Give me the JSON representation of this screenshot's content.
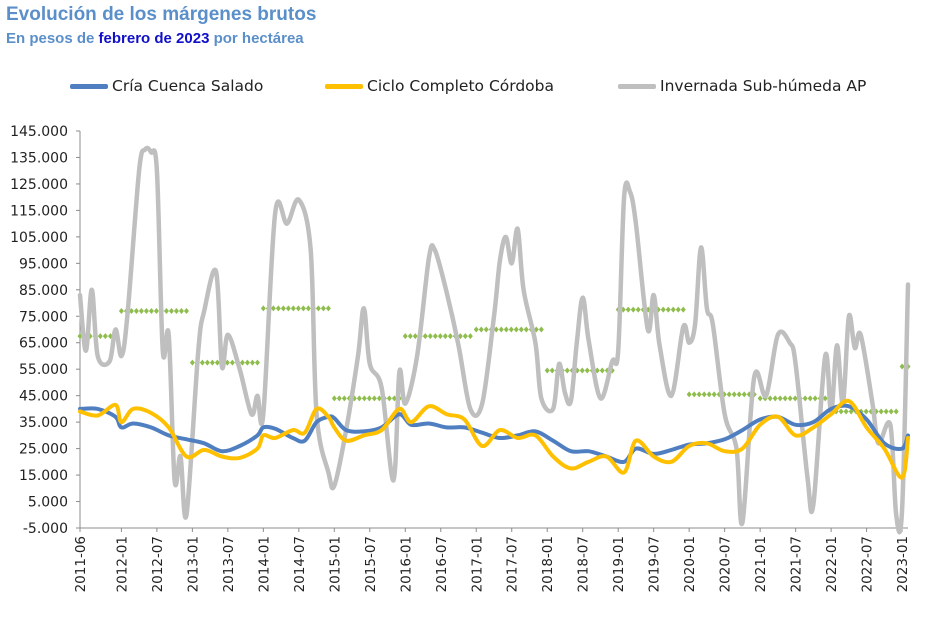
{
  "header": {
    "title": "Evolución de los márgenes brutos",
    "subtitle_prefix": "En pesos de ",
    "subtitle_highlight": "febrero de 2023",
    "subtitle_suffix": " por hectárea"
  },
  "colors": {
    "title": "#5b8fc9",
    "highlight": "#1010c8",
    "cria": "#4f7fc0",
    "ciclo": "#ffc000",
    "invernada": "#bfbfbf",
    "promedio": "#8fbd4d"
  },
  "chart_data": {
    "type": "line",
    "title": "Evolución de los márgenes brutos",
    "subtitle": "En pesos de febrero de 2023 por hectárea",
    "xlabel": "",
    "ylabel": "",
    "ylim": [
      -5000,
      145000
    ],
    "y_ticks": [
      "145.000",
      "135.000",
      "125.000",
      "115.000",
      "105.000",
      "95.000",
      "85.000",
      "75.000",
      "65.000",
      "55.000",
      "45.000",
      "35.000",
      "25.000",
      "15.000",
      "5.000",
      "-5.000"
    ],
    "x_ticks": [
      "2011-06",
      "2012-01",
      "2012-07",
      "2013-01",
      "2013-07",
      "2014-01",
      "2014-07",
      "2015-01",
      "2015-07",
      "2016-01",
      "2016-07",
      "2017-01",
      "2017-07",
      "2018-01",
      "2018-07",
      "2019-01",
      "2019-07",
      "2020-01",
      "2020-07",
      "2021-01",
      "2021-07",
      "2022-01",
      "2022-07",
      "2023-01"
    ],
    "legend_position": "top",
    "grid": false,
    "series": [
      {
        "name": "Cría Cuenca Salado",
        "color": "#4f7fc0",
        "points": [
          [
            "2011-06",
            40000
          ],
          [
            "2011-09",
            40000
          ],
          [
            "2011-12",
            37000
          ],
          [
            "2012-01",
            33000
          ],
          [
            "2012-03",
            34500
          ],
          [
            "2012-06",
            33000
          ],
          [
            "2012-09",
            30000
          ],
          [
            "2012-12",
            28500
          ],
          [
            "2013-03",
            27000
          ],
          [
            "2013-06",
            24000
          ],
          [
            "2013-09",
            26000
          ],
          [
            "2013-12",
            30000
          ],
          [
            "2014-01",
            33000
          ],
          [
            "2014-03",
            32500
          ],
          [
            "2014-06",
            29000
          ],
          [
            "2014-08",
            28000
          ],
          [
            "2014-10",
            35000
          ],
          [
            "2014-12",
            37000
          ],
          [
            "2015-01",
            36500
          ],
          [
            "2015-03",
            32000
          ],
          [
            "2015-06",
            31500
          ],
          [
            "2015-09",
            33000
          ],
          [
            "2015-12",
            38000
          ],
          [
            "2016-02",
            34000
          ],
          [
            "2016-05",
            34500
          ],
          [
            "2016-08",
            33000
          ],
          [
            "2016-11",
            33000
          ],
          [
            "2017-02",
            31000
          ],
          [
            "2017-05",
            29000
          ],
          [
            "2017-08",
            30000
          ],
          [
            "2017-11",
            31500
          ],
          [
            "2018-02",
            28000
          ],
          [
            "2018-05",
            24000
          ],
          [
            "2018-08",
            24000
          ],
          [
            "2018-11",
            22000
          ],
          [
            "2019-02",
            20000
          ],
          [
            "2019-04",
            25000
          ],
          [
            "2019-07",
            23000
          ],
          [
            "2019-10",
            24500
          ],
          [
            "2020-01",
            26500
          ],
          [
            "2020-04",
            27000
          ],
          [
            "2020-07",
            28500
          ],
          [
            "2020-10",
            32000
          ],
          [
            "2021-01",
            36000
          ],
          [
            "2021-04",
            37000
          ],
          [
            "2021-07",
            34000
          ],
          [
            "2021-10",
            35000
          ],
          [
            "2022-01",
            40000
          ],
          [
            "2022-04",
            41000
          ],
          [
            "2022-07",
            36000
          ],
          [
            "2022-10",
            27000
          ],
          [
            "2023-01",
            25000
          ],
          [
            "2023-02",
            30000
          ]
        ]
      },
      {
        "name": "Ciclo Completo Córdoba",
        "color": "#ffc000",
        "points": [
          [
            "2011-06",
            39000
          ],
          [
            "2011-09",
            37500
          ],
          [
            "2011-12",
            41500
          ],
          [
            "2012-01",
            35000
          ],
          [
            "2012-03",
            40000
          ],
          [
            "2012-06",
            38500
          ],
          [
            "2012-09",
            33000
          ],
          [
            "2012-12",
            22000
          ],
          [
            "2013-03",
            24500
          ],
          [
            "2013-06",
            22000
          ],
          [
            "2013-09",
            21500
          ],
          [
            "2013-12",
            25000
          ],
          [
            "2014-01",
            30000
          ],
          [
            "2014-03",
            29000
          ],
          [
            "2014-06",
            32000
          ],
          [
            "2014-08",
            31000
          ],
          [
            "2014-10",
            40000
          ],
          [
            "2014-12",
            37000
          ],
          [
            "2015-01",
            33000
          ],
          [
            "2015-03",
            28000
          ],
          [
            "2015-06",
            30000
          ],
          [
            "2015-09",
            32000
          ],
          [
            "2015-12",
            40000
          ],
          [
            "2016-02",
            35000
          ],
          [
            "2016-05",
            41000
          ],
          [
            "2016-08",
            38000
          ],
          [
            "2016-11",
            36000
          ],
          [
            "2017-02",
            26000
          ],
          [
            "2017-05",
            32000
          ],
          [
            "2017-08",
            29000
          ],
          [
            "2017-11",
            30000
          ],
          [
            "2018-02",
            22000
          ],
          [
            "2018-05",
            17500
          ],
          [
            "2018-08",
            20000
          ],
          [
            "2018-11",
            22000
          ],
          [
            "2019-02",
            16000
          ],
          [
            "2019-04",
            28000
          ],
          [
            "2019-07",
            22000
          ],
          [
            "2019-10",
            20000
          ],
          [
            "2020-01",
            26000
          ],
          [
            "2020-04",
            27000
          ],
          [
            "2020-07",
            24000
          ],
          [
            "2020-10",
            25000
          ],
          [
            "2021-01",
            34000
          ],
          [
            "2021-04",
            37000
          ],
          [
            "2021-07",
            30000
          ],
          [
            "2021-10",
            33000
          ],
          [
            "2022-01",
            38000
          ],
          [
            "2022-04",
            43000
          ],
          [
            "2022-07",
            33000
          ],
          [
            "2022-10",
            25000
          ],
          [
            "2023-01",
            14000
          ],
          [
            "2023-02",
            29000
          ]
        ]
      },
      {
        "name": "Invernada Sub-húmeda AP",
        "color": "#bfbfbf",
        "points": [
          [
            "2011-06",
            83000
          ],
          [
            "2011-07",
            62000
          ],
          [
            "2011-08",
            85000
          ],
          [
            "2011-09",
            60000
          ],
          [
            "2011-11",
            58000
          ],
          [
            "2011-12",
            70000
          ],
          [
            "2012-01",
            60000
          ],
          [
            "2012-02",
            75000
          ],
          [
            "2012-04",
            130000
          ],
          [
            "2012-05",
            138000
          ],
          [
            "2012-06",
            137000
          ],
          [
            "2012-07",
            130000
          ],
          [
            "2012-08",
            62000
          ],
          [
            "2012-09",
            68000
          ],
          [
            "2012-10",
            13000
          ],
          [
            "2012-11",
            22000
          ],
          [
            "2012-12",
            0
          ],
          [
            "2013-02",
            62000
          ],
          [
            "2013-03",
            77000
          ],
          [
            "2013-05",
            92000
          ],
          [
            "2013-06",
            56000
          ],
          [
            "2013-07",
            68000
          ],
          [
            "2013-09",
            55000
          ],
          [
            "2013-11",
            38000
          ],
          [
            "2013-12",
            45000
          ],
          [
            "2014-01",
            38000
          ],
          [
            "2014-03",
            114000
          ],
          [
            "2014-05",
            110000
          ],
          [
            "2014-07",
            119000
          ],
          [
            "2014-09",
            100000
          ],
          [
            "2014-10",
            38000
          ],
          [
            "2014-12",
            16000
          ],
          [
            "2015-01",
            11000
          ],
          [
            "2015-03",
            32000
          ],
          [
            "2015-05",
            60000
          ],
          [
            "2015-06",
            78000
          ],
          [
            "2015-07",
            57000
          ],
          [
            "2015-09",
            48000
          ],
          [
            "2015-11",
            13000
          ],
          [
            "2015-12",
            54000
          ],
          [
            "2016-01",
            42000
          ],
          [
            "2016-03",
            60000
          ],
          [
            "2016-05",
            97000
          ],
          [
            "2016-06",
            100000
          ],
          [
            "2016-08",
            84000
          ],
          [
            "2016-10",
            64000
          ],
          [
            "2016-12",
            40000
          ],
          [
            "2017-02",
            42000
          ],
          [
            "2017-04",
            75000
          ],
          [
            "2017-05",
            96000
          ],
          [
            "2017-06",
            105000
          ],
          [
            "2017-07",
            95000
          ],
          [
            "2017-08",
            108000
          ],
          [
            "2017-09",
            85000
          ],
          [
            "2017-11",
            65000
          ],
          [
            "2017-12",
            44000
          ],
          [
            "2018-02",
            40000
          ],
          [
            "2018-03",
            57000
          ],
          [
            "2018-04",
            46000
          ],
          [
            "2018-05",
            43000
          ],
          [
            "2018-06",
            65000
          ],
          [
            "2018-07",
            82000
          ],
          [
            "2018-08",
            66000
          ],
          [
            "2018-10",
            44000
          ],
          [
            "2018-12",
            58000
          ],
          [
            "2019-01",
            62000
          ],
          [
            "2019-02",
            120000
          ],
          [
            "2019-03",
            122000
          ],
          [
            "2019-04",
            110000
          ],
          [
            "2019-06",
            70000
          ],
          [
            "2019-07",
            83000
          ],
          [
            "2019-08",
            64000
          ],
          [
            "2019-10",
            45000
          ],
          [
            "2019-12",
            71000
          ],
          [
            "2020-01",
            65000
          ],
          [
            "2020-02",
            72000
          ],
          [
            "2020-03",
            101000
          ],
          [
            "2020-04",
            78000
          ],
          [
            "2020-05",
            72000
          ],
          [
            "2020-07",
            38000
          ],
          [
            "2020-09",
            25000
          ],
          [
            "2020-10",
            -3000
          ],
          [
            "2020-12",
            52000
          ],
          [
            "2021-02",
            45000
          ],
          [
            "2021-04",
            68000
          ],
          [
            "2021-06",
            65000
          ],
          [
            "2021-07",
            57000
          ],
          [
            "2021-09",
            14000
          ],
          [
            "2021-10",
            4000
          ],
          [
            "2021-12",
            60000
          ],
          [
            "2022-01",
            39000
          ],
          [
            "2022-02",
            64000
          ],
          [
            "2022-03",
            42000
          ],
          [
            "2022-04",
            75000
          ],
          [
            "2022-05",
            63000
          ],
          [
            "2022-06",
            68000
          ],
          [
            "2022-08",
            42000
          ],
          [
            "2022-09",
            27000
          ],
          [
            "2022-11",
            34000
          ],
          [
            "2022-12",
            0
          ],
          [
            "2023-01",
            2000
          ],
          [
            "2023-02",
            87000
          ]
        ]
      },
      {
        "name": "",
        "color": "#8fbd4d",
        "style": "dotted",
        "segments": [
          {
            "start": "2011-06",
            "end": "2011-12",
            "value": 67500
          },
          {
            "start": "2012-01",
            "end": "2012-12",
            "value": 77000
          },
          {
            "start": "2013-01",
            "end": "2013-12",
            "value": 57500
          },
          {
            "start": "2014-01",
            "end": "2014-12",
            "value": 78000
          },
          {
            "start": "2015-01",
            "end": "2015-12",
            "value": 44000
          },
          {
            "start": "2016-01",
            "end": "2016-12",
            "value": 67500
          },
          {
            "start": "2017-01",
            "end": "2017-12",
            "value": 70000
          },
          {
            "start": "2018-01",
            "end": "2018-12",
            "value": 54500
          },
          {
            "start": "2019-01",
            "end": "2019-12",
            "value": 77500
          },
          {
            "start": "2020-01",
            "end": "2020-12",
            "value": 45500
          },
          {
            "start": "2021-01",
            "end": "2021-12",
            "value": 44000
          },
          {
            "start": "2022-01",
            "end": "2022-12",
            "value": 39000
          },
          {
            "start": "2023-01",
            "end": "2023-02",
            "value": 56000
          }
        ]
      }
    ]
  }
}
